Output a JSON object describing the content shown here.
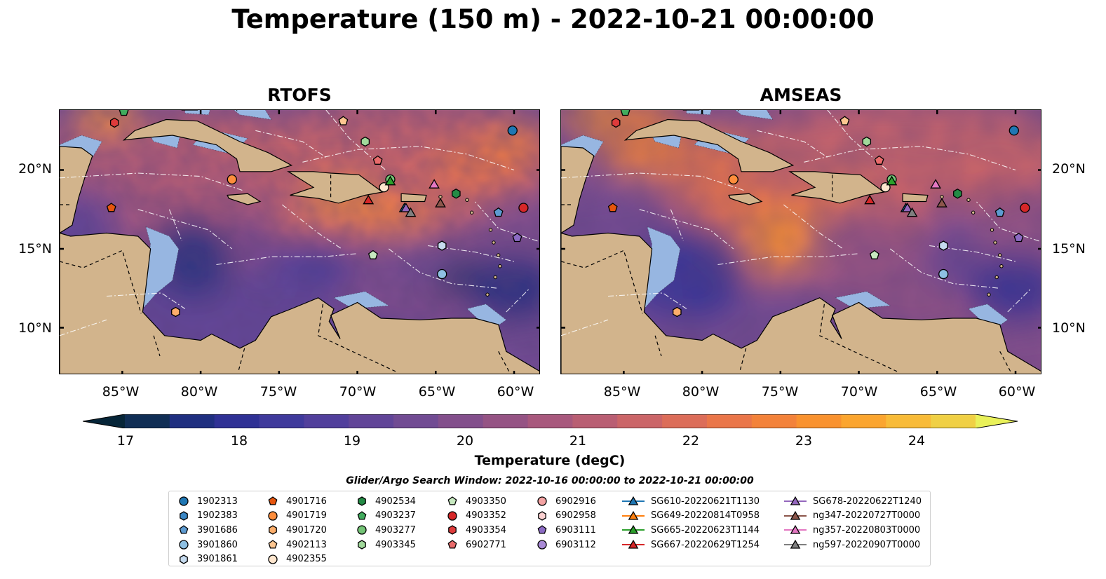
{
  "title": "Temperature (150 m) - 2022-10-21 00:00:00",
  "panels": [
    {
      "title": "RTOFS",
      "palette": "rtofs"
    },
    {
      "title": "AMSEAS",
      "palette": "amseas"
    }
  ],
  "axes": {
    "lat_ticks": [
      "20°N",
      "15°N",
      "10°N"
    ],
    "lon_ticks": [
      "85°W",
      "80°W",
      "75°W",
      "70°W",
      "65°W",
      "60°W"
    ]
  },
  "colorbar": {
    "label": "Temperature (degC)",
    "ticks": [
      "17",
      "18",
      "19",
      "20",
      "21",
      "22",
      "23",
      "24"
    ],
    "range": [
      16.75,
      24.75
    ],
    "step": 0.5,
    "extend": "both",
    "colors": [
      "#062538",
      "#102e55",
      "#1f2f80",
      "#2f3195",
      "#3f3a9c",
      "#513f9c",
      "#614598",
      "#714b93",
      "#834f8c",
      "#955384",
      "#a8587d",
      "#b95e73",
      "#cb6568",
      "#dc6d59",
      "#ea7649",
      "#f3823a",
      "#f9922f",
      "#fba52f",
      "#f8bb38",
      "#f0d045",
      "#e9f15a"
    ]
  },
  "map_colors": {
    "land": "#d2b48c",
    "shallow_water": "#97b6e1"
  },
  "search_window": "Glider/Argo Search Window: 2022-10-16 00:00:00 to 2022-10-21 00:00:00",
  "legend": {
    "columns": [
      [
        {
          "label": "1902313",
          "marker": "circle",
          "color": "#1f77b4"
        },
        {
          "label": "1902383",
          "marker": "hexagon",
          "color": "#3a86c4"
        },
        {
          "label": "3901686",
          "marker": "pentagon",
          "color": "#5d9bd1"
        },
        {
          "label": "3901860",
          "marker": "circle",
          "color": "#8ec0e3"
        },
        {
          "label": "3901861",
          "marker": "hexagon",
          "color": "#c6dbef"
        }
      ],
      [
        {
          "label": "4901716",
          "marker": "pentagon",
          "color": "#e6550d"
        },
        {
          "label": "4901719",
          "marker": "circle",
          "color": "#fd8d3c"
        },
        {
          "label": "4901720",
          "marker": "hexagon",
          "color": "#fdae6b"
        },
        {
          "label": "4902113",
          "marker": "pentagon",
          "color": "#fdc690"
        },
        {
          "label": "4902355",
          "marker": "circle",
          "color": "#fee6ce"
        }
      ],
      [
        {
          "label": "4902534",
          "marker": "hexagon",
          "color": "#238b45"
        },
        {
          "label": "4903237",
          "marker": "pentagon",
          "color": "#41ab5d"
        },
        {
          "label": "4903277",
          "marker": "circle",
          "color": "#74c476"
        },
        {
          "label": "4903345",
          "marker": "hexagon",
          "color": "#a1d99b"
        }
      ],
      [
        {
          "label": "4903350",
          "marker": "pentagon",
          "color": "#c7e9c0"
        },
        {
          "label": "4903352",
          "marker": "circle",
          "color": "#d62728"
        },
        {
          "label": "4903354",
          "marker": "hexagon",
          "color": "#de3b3b"
        },
        {
          "label": "6902771",
          "marker": "pentagon",
          "color": "#e96b6b"
        }
      ],
      [
        {
          "label": "6902916",
          "marker": "circle",
          "color": "#f4a3a3"
        },
        {
          "label": "6902958",
          "marker": "hexagon",
          "color": "#fbd0d0"
        },
        {
          "label": "6903111",
          "marker": "pentagon",
          "color": "#8c6bc4"
        },
        {
          "label": "6903112",
          "marker": "circle",
          "color": "#a98ad6"
        }
      ],
      [
        {
          "label": "SG610-20220621T1130",
          "marker": "triangle",
          "color": "#1f77b4"
        },
        {
          "label": "SG649-20220814T0958",
          "marker": "triangle",
          "color": "#ff7f0e"
        },
        {
          "label": "SG665-20220623T1144",
          "marker": "triangle",
          "color": "#2ca02c"
        },
        {
          "label": "SG667-20220629T1254",
          "marker": "triangle",
          "color": "#d62728"
        }
      ],
      [
        {
          "label": "SG678-20220622T1240",
          "marker": "triangle",
          "color": "#9467bd"
        },
        {
          "label": "ng347-20220727T0000",
          "marker": "triangle",
          "color": "#8c564b"
        },
        {
          "label": "ng357-20220803T0000",
          "marker": "triangle",
          "color": "#e377c2"
        },
        {
          "label": "ng597-20220907T0000",
          "marker": "triangle",
          "color": "#7f7f7f"
        }
      ]
    ]
  },
  "observations": [
    {
      "id": "1902313",
      "lon": -60.1,
      "lat": 22.5
    },
    {
      "id": "3901686",
      "lon": -61.0,
      "lat": 17.3
    },
    {
      "id": "3901860",
      "lon": -64.6,
      "lat": 13.4
    },
    {
      "id": "3901861",
      "lon": -64.6,
      "lat": 15.2
    },
    {
      "id": "4901716",
      "lon": -85.7,
      "lat": 17.6
    },
    {
      "id": "4901719",
      "lon": -78.0,
      "lat": 19.4
    },
    {
      "id": "4901720",
      "lon": -81.6,
      "lat": 11.0
    },
    {
      "id": "4902113",
      "lon": -70.9,
      "lat": 23.1
    },
    {
      "id": "4902355",
      "lon": -68.3,
      "lat": 18.9
    },
    {
      "id": "4902534",
      "lon": -63.7,
      "lat": 18.5
    },
    {
      "id": "4903237",
      "lon": -84.9,
      "lat": 23.7
    },
    {
      "id": "4903277",
      "lon": -67.9,
      "lat": 19.4
    },
    {
      "id": "4903345",
      "lon": -69.5,
      "lat": 21.8
    },
    {
      "id": "4903350",
      "lon": -69.0,
      "lat": 14.6
    },
    {
      "id": "4903352",
      "lon": -59.4,
      "lat": 17.6
    },
    {
      "id": "4903354",
      "lon": -85.5,
      "lat": 23.0
    },
    {
      "id": "6902771",
      "lon": -68.7,
      "lat": 20.6
    },
    {
      "id": "6903111",
      "lon": -59.8,
      "lat": 15.7
    },
    {
      "id": "SG610-20220621T1130",
      "lon": -67.0,
      "lat": 17.6
    },
    {
      "id": "SG665-20220623T1144",
      "lon": -67.9,
      "lat": 19.3
    },
    {
      "id": "SG667-20220629T1254",
      "lon": -69.3,
      "lat": 18.1
    },
    {
      "id": "SG678-20220622T1240",
      "lon": -66.9,
      "lat": 17.6
    },
    {
      "id": "ng347-20220727T0000",
      "lon": -64.7,
      "lat": 17.9
    },
    {
      "id": "ng357-20220803T0000",
      "lon": -65.1,
      "lat": 19.1
    },
    {
      "id": "ng597-20220907T0000",
      "lon": -66.6,
      "lat": 17.3
    }
  ]
}
